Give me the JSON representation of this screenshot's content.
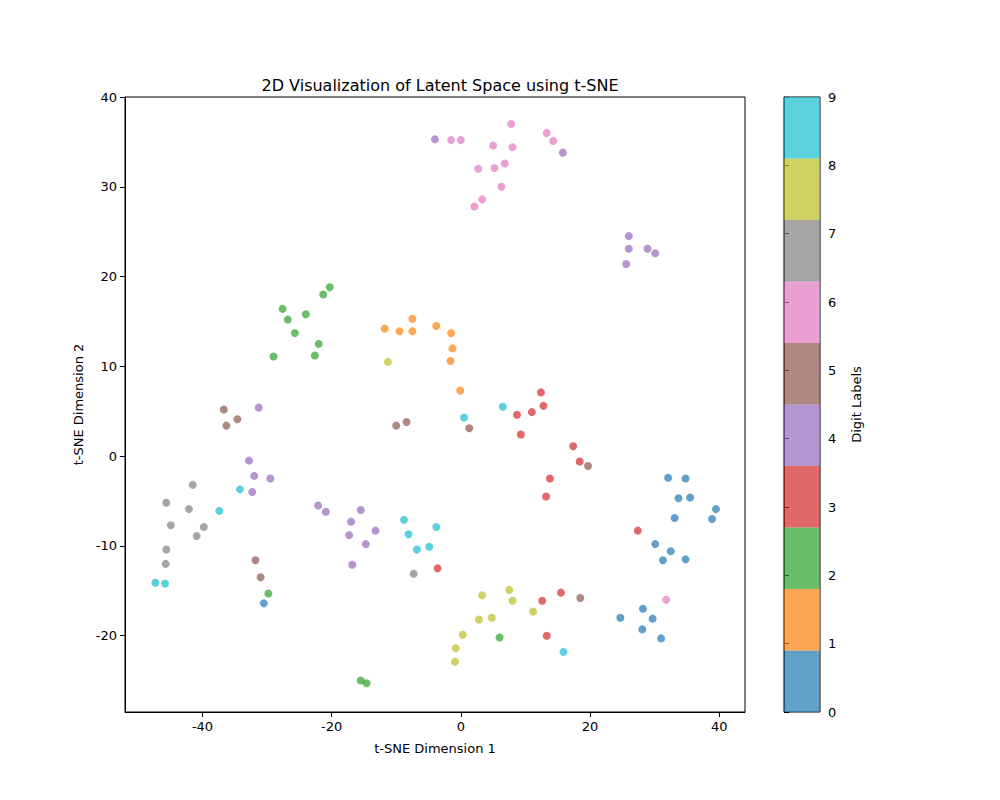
{
  "chart_data": {
    "type": "scatter",
    "title": "2D Visualization of Latent Space using t-SNE",
    "x_label": "t-SNE Dimension 1",
    "y_label": "t-SNE Dimension 2",
    "xlim": [
      -52,
      44
    ],
    "ylim": [
      -28.5,
      40
    ],
    "xticks": [
      -40,
      -20,
      0,
      20,
      40
    ],
    "yticks": [
      -20,
      -10,
      0,
      10,
      20,
      30,
      40
    ],
    "grid": false,
    "marker": "circle",
    "x": [
      -1.5,
      0,
      5,
      7.8,
      8,
      13.3,
      14.3,
      6.8,
      5.2,
      2.7,
      6.3,
      3.3,
      2.1,
      31.8,
      -4,
      15.8,
      26,
      26,
      28.9,
      30.1,
      25.6,
      -32.8,
      -32,
      -29.5,
      -32.3,
      -31.3,
      -22.1,
      -20.9,
      -15.5,
      -17,
      -13.2,
      -17.3,
      -14.7,
      -16.8,
      -20.3,
      -21.3,
      -27.6,
      -24,
      -26.8,
      -25.7,
      -22,
      -29,
      -22.6,
      -29.8,
      6,
      -15.5,
      -14.6,
      -11.8,
      -9.5,
      -7.5,
      -7.5,
      -3.8,
      -1.5,
      -1.3,
      -1.6,
      -0.1,
      -11.3,
      3.3,
      7.5,
      8,
      2.8,
      4.8,
      11.2,
      0.3,
      -0.8,
      -0.9,
      -36.7,
      -34.6,
      -36.3,
      -8.4,
      -10,
      1.3,
      19.7,
      -31.8,
      -31,
      18.5,
      0.5,
      6.5,
      -34.2,
      -37.4,
      -8.8,
      -3.8,
      -8.1,
      -6.8,
      -4.9,
      -47.3,
      -45.8,
      15.9,
      12.4,
      12.8,
      11,
      8.7,
      9.3,
      17.4,
      18.4,
      13.8,
      13.2,
      27.4,
      -3.6,
      15.5,
      12.6,
      13.3,
      -41.5,
      -45.6,
      -42.1,
      -44.9,
      -39.8,
      -40.9,
      -45.6,
      -45.7,
      -7.3,
      32.1,
      34.8,
      33.7,
      35.5,
      39.5,
      38.9,
      33.1,
      30.1,
      32.5,
      34.8,
      31.3,
      24.7,
      28.2,
      29.7,
      28.1,
      31,
      -30.5
    ],
    "y": [
      35.2,
      35.2,
      34.6,
      37,
      34.4,
      36,
      35.1,
      32.6,
      32.1,
      32,
      30,
      28.6,
      27.8,
      -16,
      35.3,
      33.8,
      24.5,
      23.1,
      23.1,
      22.6,
      21.4,
      -0.5,
      -2.2,
      -2.5,
      -4,
      5.4,
      -5.5,
      -6.2,
      -6,
      -7.3,
      -8.3,
      -8.8,
      -9.8,
      -12.1,
      18.8,
      18,
      16.4,
      15.8,
      15.2,
      13.7,
      12.5,
      11.1,
      11.2,
      -15.3,
      -20.2,
      -25,
      -25.3,
      14.2,
      13.9,
      15.3,
      13.9,
      14.5,
      13.7,
      12,
      10.6,
      7.3,
      10.5,
      -15.5,
      -14.9,
      -16.1,
      -18.2,
      -18,
      -17.3,
      -19.9,
      -21.4,
      -22.9,
      5.2,
      4.1,
      3.4,
      3.8,
      3.4,
      3.1,
      -1.1,
      -11.6,
      -13.5,
      -15.8,
      4.3,
      5.5,
      -3.7,
      -6.1,
      -7.1,
      -7.9,
      -8.7,
      -10.4,
      -10.1,
      -14.1,
      -14.2,
      -21.8,
      7.1,
      5.6,
      4.9,
      4.6,
      2.4,
      1.1,
      -0.6,
      -2.5,
      -4.5,
      -8.3,
      -12.5,
      -15.2,
      -16.1,
      -20,
      -3.2,
      -5.2,
      -5.9,
      -7.7,
      -7.9,
      -8.9,
      -10.4,
      -12,
      -13.1,
      -2.4,
      -2.5,
      -4.7,
      -4.6,
      -5.9,
      -7,
      -6.9,
      -9.8,
      -10.6,
      -11.5,
      -11.6,
      -18,
      -17,
      -18.1,
      -19.3,
      -20.3,
      -16.4
    ],
    "labels": [
      6,
      6,
      6,
      6,
      6,
      6,
      6,
      6,
      6,
      6,
      6,
      6,
      6,
      6,
      4,
      4,
      4,
      4,
      4,
      4,
      4,
      4,
      4,
      4,
      4,
      4,
      4,
      4,
      4,
      4,
      4,
      4,
      4,
      4,
      2,
      2,
      2,
      2,
      2,
      2,
      2,
      2,
      2,
      2,
      2,
      2,
      2,
      1,
      1,
      1,
      1,
      1,
      1,
      1,
      1,
      1,
      8,
      8,
      8,
      8,
      8,
      8,
      8,
      8,
      8,
      8,
      5,
      5,
      5,
      5,
      5,
      5,
      5,
      5,
      5,
      5,
      9,
      9,
      9,
      9,
      9,
      9,
      9,
      9,
      9,
      9,
      9,
      9,
      3,
      3,
      3,
      3,
      3,
      3,
      3,
      3,
      3,
      3,
      3,
      3,
      3,
      3,
      7,
      7,
      7,
      7,
      7,
      7,
      7,
      7,
      7,
      0,
      0,
      0,
      0,
      0,
      0,
      0,
      0,
      0,
      0,
      0,
      0,
      0,
      0,
      0,
      0,
      0
    ],
    "colorbar": {
      "label": "Digit Labels",
      "range": [
        0,
        9
      ],
      "ticks": [
        0,
        1,
        2,
        3,
        4,
        5,
        6,
        7,
        8,
        9
      ],
      "colors": [
        "#1f77b4",
        "#ff7f0e",
        "#2ca02c",
        "#d62728",
        "#9467bd",
        "#8c564b",
        "#e377c2",
        "#7f7f7f",
        "#bcbd22",
        "#17becf"
      ]
    }
  }
}
